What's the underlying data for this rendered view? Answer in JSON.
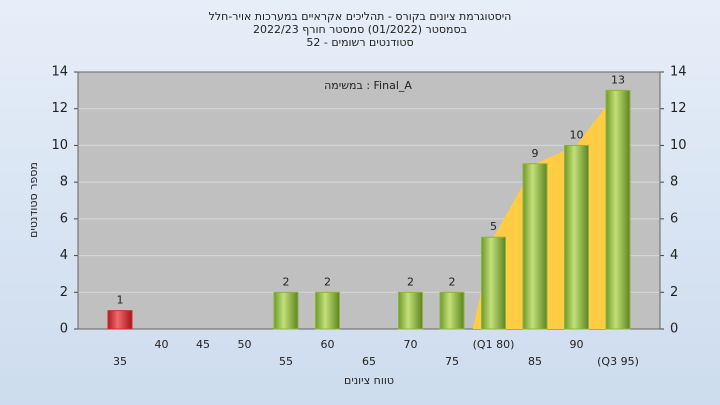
{
  "chart_data": {
    "type": "bar",
    "title": "היסטוגרמת ציונים בקורס - תהליכים אקראיים במערכות אויר-חלל",
    "subtitle": "בסמסטר  (01/2022)  סמסטר חורף 2022/23",
    "subtitle2": "סטודנטים רשומים - 52",
    "legend": "במשימה : Final_A",
    "xlabel": "טווח ציונים",
    "ylabel": "מספר סטודנטים",
    "categories": [
      "35",
      "40",
      "45",
      "50",
      "55",
      "60",
      "65",
      "70",
      "75",
      "(Q1 80)",
      "85",
      "90",
      "(Q3 95)"
    ],
    "values": [
      1,
      0,
      0,
      0,
      2,
      2,
      0,
      2,
      2,
      5,
      9,
      10,
      13
    ],
    "colors": [
      "#d9262b",
      "#8db33f",
      "#8db33f",
      "#8db33f",
      "#8db33f",
      "#8db33f",
      "#8db33f",
      "#8db33f",
      "#8db33f",
      "#8db33f",
      "#8db33f",
      "#8db33f",
      "#8db33f"
    ],
    "highlight_color": "#ffcc44",
    "ylim": [
      0,
      14
    ],
    "yticks": [
      0,
      2,
      4,
      6,
      8,
      10,
      12,
      14
    ],
    "grid": true
  }
}
